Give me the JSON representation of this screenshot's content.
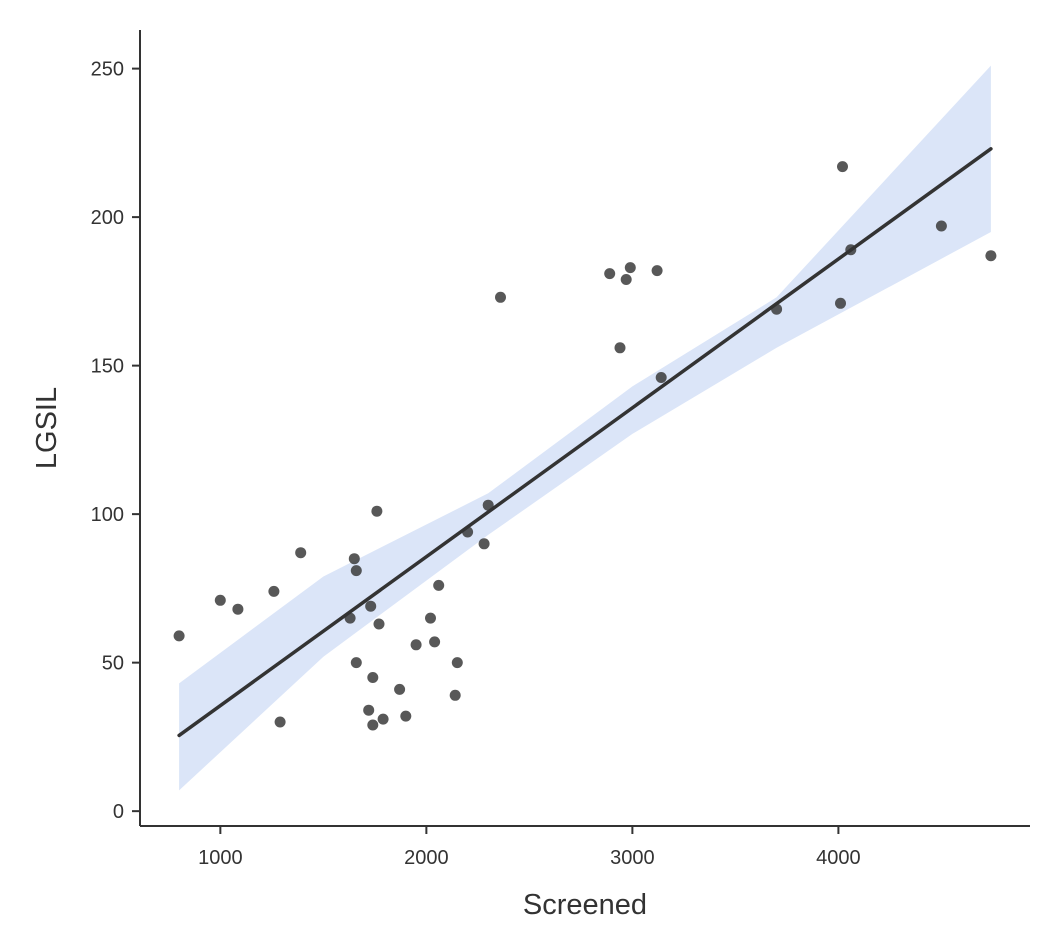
{
  "chart_data": {
    "type": "scatter",
    "xlabel": "Screened",
    "ylabel": "LGSIL",
    "xlim": [
      610,
      4930
    ],
    "ylim": [
      -5,
      263
    ],
    "x_ticks": [
      1000,
      2000,
      3000,
      4000
    ],
    "y_ticks": [
      0,
      50,
      100,
      150,
      200,
      250
    ],
    "x_tick_labels": [
      "1000",
      "2000",
      "3000",
      "4000"
    ],
    "y_tick_labels": [
      "0",
      "50",
      "100",
      "150",
      "200",
      "250"
    ],
    "grid": false,
    "legend": "none",
    "points": [
      {
        "x": 800,
        "y": 59
      },
      {
        "x": 1000,
        "y": 71
      },
      {
        "x": 1085,
        "y": 68
      },
      {
        "x": 1260,
        "y": 74
      },
      {
        "x": 1290,
        "y": 30
      },
      {
        "x": 1390,
        "y": 87
      },
      {
        "x": 1630,
        "y": 65
      },
      {
        "x": 1650,
        "y": 85
      },
      {
        "x": 1660,
        "y": 81
      },
      {
        "x": 1660,
        "y": 50
      },
      {
        "x": 1720,
        "y": 34
      },
      {
        "x": 1730,
        "y": 69
      },
      {
        "x": 1740,
        "y": 45
      },
      {
        "x": 1740,
        "y": 29
      },
      {
        "x": 1760,
        "y": 101
      },
      {
        "x": 1770,
        "y": 63
      },
      {
        "x": 1790,
        "y": 31
      },
      {
        "x": 1870,
        "y": 41
      },
      {
        "x": 1900,
        "y": 32
      },
      {
        "x": 1950,
        "y": 56
      },
      {
        "x": 2020,
        "y": 65
      },
      {
        "x": 2040,
        "y": 57
      },
      {
        "x": 2060,
        "y": 76
      },
      {
        "x": 2140,
        "y": 39
      },
      {
        "x": 2150,
        "y": 50
      },
      {
        "x": 2200,
        "y": 94
      },
      {
        "x": 2280,
        "y": 90
      },
      {
        "x": 2300,
        "y": 103
      },
      {
        "x": 2360,
        "y": 173
      },
      {
        "x": 2890,
        "y": 181
      },
      {
        "x": 2940,
        "y": 156
      },
      {
        "x": 2970,
        "y": 179
      },
      {
        "x": 2990,
        "y": 183
      },
      {
        "x": 3120,
        "y": 182
      },
      {
        "x": 3140,
        "y": 146
      },
      {
        "x": 3700,
        "y": 169
      },
      {
        "x": 4010,
        "y": 171
      },
      {
        "x": 4020,
        "y": 217
      },
      {
        "x": 4060,
        "y": 189
      },
      {
        "x": 4500,
        "y": 197
      },
      {
        "x": 4740,
        "y": 187
      }
    ],
    "fit": {
      "x": [
        800,
        4740
      ],
      "y": [
        25.5,
        223
      ]
    },
    "confidence_band": {
      "x": [
        800,
        1500,
        2300,
        3000,
        3700,
        4740
      ],
      "lower": [
        7,
        52,
        93,
        127,
        156,
        195
      ],
      "upper": [
        43,
        79,
        107,
        143,
        173,
        251
      ]
    },
    "colors": {
      "point": "#333333",
      "fit_line": "#333333",
      "band": "#dbe5f8",
      "axis": "#333333"
    }
  }
}
